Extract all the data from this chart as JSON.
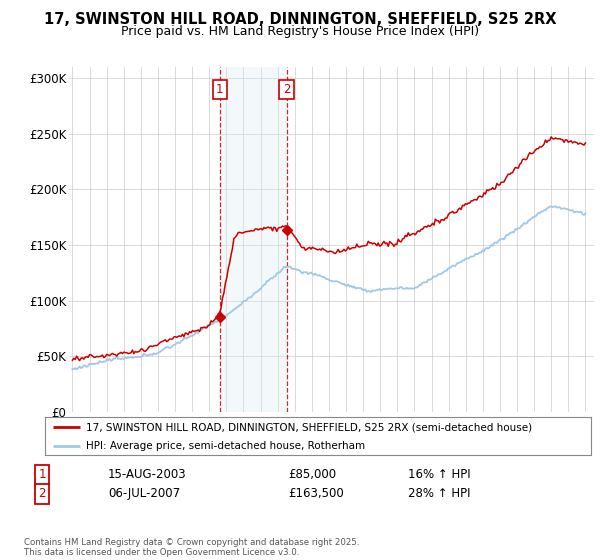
{
  "title": "17, SWINSTON HILL ROAD, DINNINGTON, SHEFFIELD, S25 2RX",
  "subtitle": "Price paid vs. HM Land Registry's House Price Index (HPI)",
  "ylim": [
    0,
    310000
  ],
  "yticks": [
    0,
    50000,
    100000,
    150000,
    200000,
    250000,
    300000
  ],
  "ytick_labels": [
    "£0",
    "£50K",
    "£100K",
    "£150K",
    "£200K",
    "£250K",
    "£300K"
  ],
  "hpi_color": "#a0c8e8",
  "price_color": "#cc0000",
  "sale1_date": 2003.62,
  "sale1_price": 85000,
  "sale2_date": 2007.52,
  "sale2_price": 163500,
  "vline_color": "#cc0000",
  "shade_color": "#daeaf5",
  "legend_label_price": "17, SWINSTON HILL ROAD, DINNINGTON, SHEFFIELD, S25 2RX (semi-detached house)",
  "legend_label_hpi": "HPI: Average price, semi-detached house, Rotherham",
  "footer": "Contains HM Land Registry data © Crown copyright and database right 2025.\nThis data is licensed under the Open Government Licence v3.0.",
  "table_row1": [
    "1",
    "15-AUG-2003",
    "£85,000",
    "16% ↑ HPI"
  ],
  "table_row2": [
    "2",
    "06-JUL-2007",
    "£163,500",
    "28% ↑ HPI"
  ],
  "bg_color": "#ffffff",
  "grid_color": "#cccccc"
}
